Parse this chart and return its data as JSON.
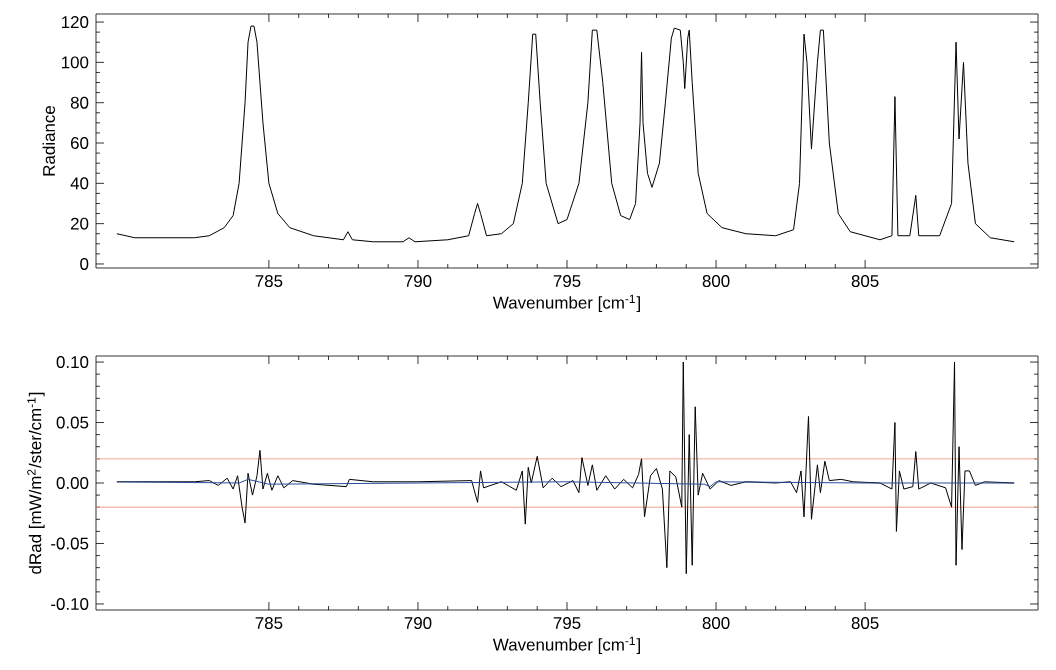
{
  "chart_data": [
    {
      "type": "line",
      "xlabel": "Wavenumber [cm$^{-1}$]",
      "ylabel": "Radiance",
      "xlim": [
        779.2,
        810.8
      ],
      "ylim": [
        -2,
        124
      ],
      "xticks": [
        785,
        790,
        795,
        800,
        805
      ],
      "yticks": [
        0,
        20,
        40,
        60,
        80,
        100,
        120
      ],
      "grid": false,
      "series": [
        {
          "color": "#000000",
          "x": [
            779.9,
            780.5,
            781.5,
            782.5,
            783,
            783.5,
            783.8,
            784.0,
            784.2,
            784.3,
            784.4,
            784.5,
            784.6,
            784.8,
            785.0,
            785.3,
            785.7,
            786.5,
            787.5,
            787.65,
            787.8,
            788.5,
            789.5,
            789.7,
            789.9,
            791,
            791.7,
            791.9,
            792.0,
            792.1,
            792.3,
            792.8,
            793.2,
            793.5,
            793.7,
            793.85,
            793.95,
            794.1,
            794.3,
            794.7,
            795.0,
            795.4,
            795.7,
            795.85,
            796.0,
            796.2,
            796.5,
            796.8,
            797.1,
            797.3,
            797.45,
            797.5,
            797.55,
            797.7,
            797.85,
            798.1,
            798.3,
            798.5,
            798.6,
            798.8,
            798.9,
            798.95,
            799.05,
            799.1,
            799.2,
            799.4,
            799.7,
            800.2,
            801,
            802,
            802.6,
            802.8,
            802.95,
            803.05,
            803.2,
            803.4,
            803.5,
            803.6,
            803.8,
            804.1,
            804.5,
            805.0,
            805.5,
            805.9,
            806.0,
            806.1,
            806.5,
            806.7,
            806.8,
            807.5,
            807.9,
            808.05,
            808.15,
            808.3,
            808.45,
            808.7,
            809.2,
            810.0
          ],
          "values": [
            15,
            13,
            13,
            13,
            14,
            18,
            24,
            40,
            80,
            110,
            118,
            118,
            110,
            70,
            40,
            25,
            18,
            14,
            12,
            16,
            12,
            11,
            11,
            13,
            11,
            12,
            14,
            25,
            30,
            25,
            14,
            15,
            20,
            40,
            80,
            114,
            114,
            80,
            40,
            20,
            22,
            40,
            80,
            116,
            116,
            90,
            40,
            24,
            22,
            30,
            70,
            105,
            70,
            45,
            38,
            50,
            80,
            112,
            117,
            116,
            100,
            87,
            112,
            116,
            90,
            45,
            25,
            18,
            15,
            14,
            17,
            40,
            114,
            100,
            57,
            100,
            116,
            116,
            60,
            25,
            16,
            14,
            12,
            14,
            83,
            14,
            14,
            34,
            14,
            14,
            30,
            110,
            62,
            100,
            50,
            20,
            13,
            11
          ]
        }
      ]
    },
    {
      "type": "line",
      "xlabel": "Wavenumber [cm$^{-1}$]",
      "ylabel": "dRad [mW/m$^{2}$/ster/cm$^{-1}$]",
      "xlim": [
        779.2,
        810.8
      ],
      "ylim": [
        -0.105,
        0.105
      ],
      "xticks": [
        785,
        790,
        795,
        800,
        805
      ],
      "yticks": [
        {
          "value": -0.1,
          "label": "-0.10"
        },
        {
          "value": -0.05,
          "label": "-0.05"
        },
        {
          "value": 0,
          "label": "0.00"
        },
        {
          "value": 0.05,
          "label": "0.05"
        },
        {
          "value": 0.1,
          "label": "0.10"
        }
      ],
      "grid": false,
      "ref_lines": [
        {
          "axis": "y",
          "value": 0.02,
          "color": "#f4a898"
        },
        {
          "axis": "y",
          "value": -0.02,
          "color": "#f4a090"
        }
      ],
      "series": [
        {
          "color": "#000000",
          "x": [
            779.9,
            782.5,
            783,
            783.3,
            783.6,
            783.8,
            783.95,
            784.1,
            784.2,
            784.3,
            784.45,
            784.6,
            784.7,
            784.8,
            784.95,
            785.1,
            785.3,
            785.5,
            785.8,
            786.5,
            787.6,
            787.7,
            788.5,
            790,
            791.8,
            792.0,
            792.1,
            792.2,
            792.8,
            793.3,
            793.5,
            793.6,
            793.7,
            793.8,
            794.0,
            794.2,
            794.5,
            794.8,
            795.2,
            795.4,
            795.5,
            795.7,
            795.85,
            796.0,
            796.3,
            796.6,
            796.9,
            797.2,
            797.4,
            797.5,
            797.6,
            797.8,
            798.0,
            798.2,
            798.35,
            798.45,
            798.65,
            798.85,
            798.9,
            799.0,
            799.1,
            799.2,
            799.3,
            799.4,
            799.55,
            799.8,
            800.1,
            800.5,
            801,
            802,
            802.5,
            802.7,
            802.85,
            802.95,
            803.05,
            803.1,
            803.2,
            803.4,
            803.5,
            803.65,
            803.8,
            804.2,
            804.6,
            805.5,
            805.9,
            806.0,
            806.05,
            806.15,
            806.3,
            806.6,
            806.7,
            806.8,
            807.2,
            807.7,
            807.9,
            808.0,
            808.05,
            808.15,
            808.25,
            808.35,
            808.5,
            808.7,
            809.0,
            810.0
          ],
          "values": [
            0.001,
            0.001,
            0.002,
            -0.002,
            0.004,
            -0.005,
            0.006,
            -0.02,
            -0.033,
            0.008,
            -0.01,
            0.006,
            0.027,
            -0.005,
            0.008,
            -0.006,
            0.006,
            -0.004,
            0.002,
            -0.001,
            -0.003,
            0.003,
            0.001,
            0.001,
            0.002,
            -0.016,
            0.01,
            -0.004,
            0.001,
            -0.006,
            0.01,
            -0.034,
            0.013,
            0.0,
            0.022,
            -0.004,
            0.004,
            -0.003,
            0.002,
            -0.008,
            0.021,
            -0.002,
            0.015,
            -0.006,
            0.006,
            -0.005,
            0.003,
            -0.004,
            0.007,
            0.02,
            -0.028,
            0.006,
            0.012,
            -0.005,
            -0.07,
            0.01,
            0.005,
            -0.02,
            0.1,
            -0.075,
            0.04,
            -0.068,
            0.063,
            -0.01,
            0.008,
            -0.005,
            0.002,
            -0.002,
            0.001,
            0.0,
            0.001,
            -0.008,
            0.01,
            -0.028,
            0.028,
            0.055,
            -0.03,
            0.015,
            -0.008,
            0.018,
            0.002,
            0.003,
            0.001,
            0.0,
            -0.005,
            0.05,
            -0.04,
            0.01,
            -0.005,
            -0.003,
            0.026,
            -0.005,
            0.0,
            -0.004,
            -0.02,
            0.1,
            -0.068,
            0.03,
            -0.055,
            0.01,
            0.01,
            -0.002,
            0.001,
            0.0
          ]
        },
        {
          "color": "#2a4a9a",
          "x": [
            779.9,
            784.0,
            784.3,
            785.0,
            790,
            795,
            799.6,
            799.8,
            800.0,
            805,
            810.0
          ],
          "values": [
            0.001,
            0.0,
            0.003,
            -0.001,
            0.0,
            0.001,
            -0.001,
            -0.003,
            0.001,
            0.0,
            0.0
          ]
        }
      ]
    }
  ]
}
